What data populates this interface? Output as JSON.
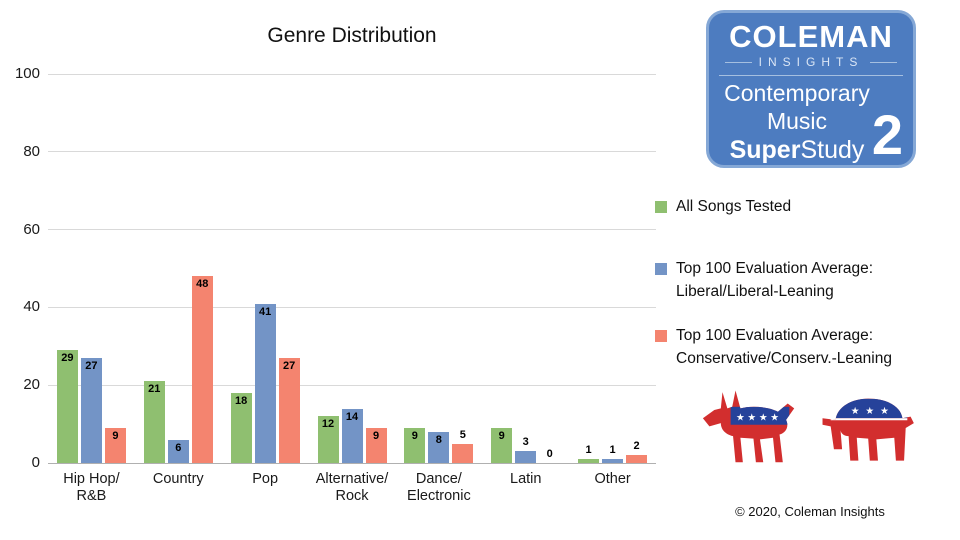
{
  "chart_data": {
    "type": "bar",
    "title": "Genre Distribution",
    "categories": [
      "Hip Hop/\nR&B",
      "Country",
      "Pop",
      "Alternative/\nRock",
      "Dance/\nElectronic",
      "Latin",
      "Other"
    ],
    "series": [
      {
        "name": "All Songs Tested",
        "color": "#8fbf70",
        "values": [
          29,
          21,
          18,
          12,
          9,
          9,
          1
        ]
      },
      {
        "name": "Top 100 Evaluation Average:\nLiberal/Liberal-Leaning",
        "color": "#7394c6",
        "values": [
          27,
          6,
          41,
          14,
          8,
          3,
          1
        ]
      },
      {
        "name": "Top 100 Evaluation Average:\nConservative/Conserv.-Leaning",
        "color": "#f4846f",
        "values": [
          9,
          48,
          27,
          9,
          5,
          0,
          2
        ]
      }
    ],
    "ylim": [
      0,
      100
    ],
    "yticks": [
      0,
      20,
      40,
      60,
      80,
      100
    ],
    "grid": true,
    "legend_position": "right"
  },
  "logo": {
    "coleman": "COLEMAN",
    "insights": "INSIGHTS",
    "contemporary": "Contemporary",
    "music": "Music",
    "super": "Super",
    "study": "Study",
    "number": "2"
  },
  "icons": {
    "democrat": "donkey-with-stars",
    "republican": "elephant-with-stars"
  },
  "colors": {
    "logo_blue": "#4d7cc0",
    "party_blue": "#26429a",
    "party_red": "#d22e2e"
  },
  "footer": {
    "copyright": "© 2020, Coleman Insights"
  }
}
